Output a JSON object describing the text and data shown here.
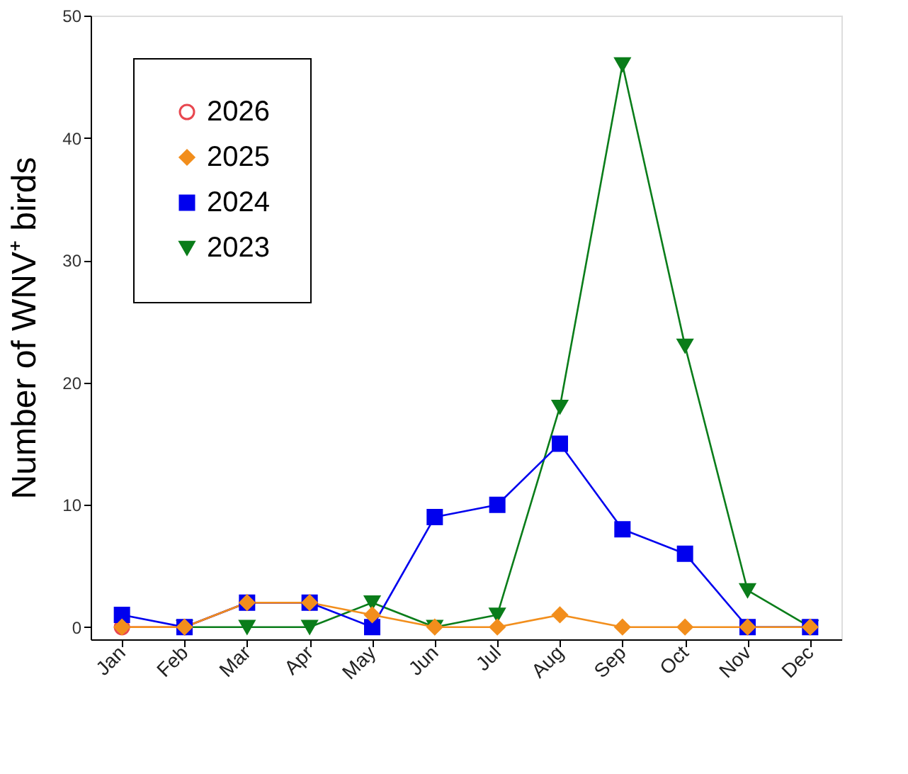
{
  "chart_data": {
    "type": "line",
    "ylabel": "Number of WNV⁺ birds",
    "categories": [
      "Jan",
      "Feb",
      "Mar",
      "Apr",
      "May",
      "Jun",
      "Jul",
      "Aug",
      "Sep",
      "Oct",
      "Nov",
      "Dec"
    ],
    "ylim": [
      -1,
      50
    ],
    "yticks": [
      0,
      10,
      20,
      30,
      40,
      50
    ],
    "grid": false,
    "legend": "top left",
    "series": [
      {
        "name": "2026",
        "color": "#e8474f",
        "marker": "circle",
        "values": [
          0,
          0,
          2,
          2,
          null,
          null,
          null,
          null,
          null,
          null,
          null,
          null
        ]
      },
      {
        "name": "2025",
        "color": "#f28e1c",
        "marker": "diamond",
        "values": [
          0,
          0,
          2,
          2,
          1,
          0,
          0,
          1,
          0,
          0,
          0,
          0
        ]
      },
      {
        "name": "2024",
        "color": "#0000ee",
        "marker": "square",
        "values": [
          1,
          0,
          2,
          2,
          0,
          9,
          10,
          15,
          8,
          6,
          0,
          0
        ]
      },
      {
        "name": "2023",
        "color": "#0a7d1a",
        "marker": "triangle",
        "values": [
          null,
          0,
          0,
          0,
          2,
          0,
          1,
          18,
          46,
          23,
          3,
          0
        ]
      }
    ]
  }
}
